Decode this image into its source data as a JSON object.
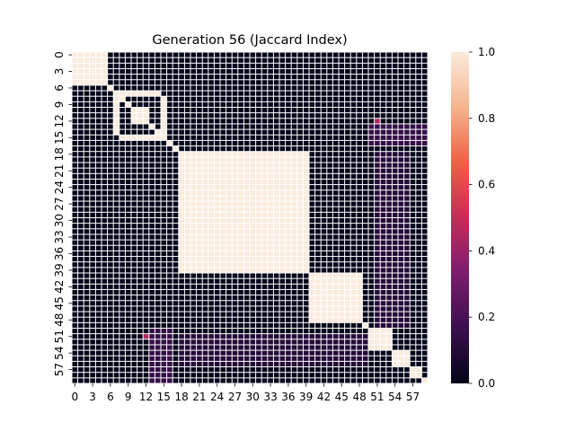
{
  "chart_data": {
    "type": "heatmap",
    "title": "Generation 56 (Jaccard Index)",
    "xlabel": "",
    "ylabel": "",
    "n": 60,
    "x_tick_labels": [
      "0",
      "3",
      "6",
      "9",
      "12",
      "15",
      "18",
      "21",
      "24",
      "27",
      "30",
      "33",
      "36",
      "39",
      "42",
      "45",
      "48",
      "51",
      "54",
      "57"
    ],
    "y_tick_labels": [
      "0",
      "3",
      "6",
      "9",
      "12",
      "15",
      "18",
      "21",
      "24",
      "27",
      "30",
      "33",
      "36",
      "39",
      "42",
      "45",
      "48",
      "51",
      "54",
      "57"
    ],
    "colorbar": {
      "range": [
        0.0,
        1.0
      ],
      "tick_labels": [
        "0.0",
        "0.2",
        "0.4",
        "0.6",
        "0.8",
        "1.0"
      ]
    },
    "colormap_stops": [
      "#03051a",
      "#3b0f4d",
      "#7c1d6f",
      "#c82a58",
      "#f06043",
      "#f6b48f",
      "#faebdd"
    ],
    "blocks": [
      {
        "rows": [
          0,
          5
        ],
        "cols": [
          0,
          5
        ],
        "value": 1.0
      },
      {
        "rows": [
          10,
          12
        ],
        "cols": [
          10,
          12
        ],
        "value": 1.0
      },
      {
        "rows": [
          18,
          39
        ],
        "cols": [
          18,
          39
        ],
        "value": 1.0
      },
      {
        "rows": [
          40,
          48
        ],
        "cols": [
          40,
          48
        ],
        "value": 1.0
      },
      {
        "rows": [
          50,
          53
        ],
        "cols": [
          50,
          53
        ],
        "value": 1.0
      },
      {
        "rows": [
          54,
          56
        ],
        "cols": [
          54,
          56
        ],
        "value": 1.0
      },
      {
        "rows": [
          57,
          58
        ],
        "cols": [
          57,
          58
        ],
        "value": 1.0
      },
      {
        "rows": [
          7,
          7
        ],
        "cols": [
          8,
          14
        ],
        "value": 1.0
      },
      {
        "rows": [
          8,
          14
        ],
        "cols": [
          7,
          7
        ],
        "value": 1.0
      },
      {
        "rows": [
          15,
          15
        ],
        "cols": [
          8,
          14
        ],
        "value": 1.0
      },
      {
        "rows": [
          8,
          14
        ],
        "cols": [
          15,
          15
        ],
        "value": 1.0
      }
    ],
    "diagonal_value": 1.0,
    "background_value": 0.0,
    "faint_regions": [
      {
        "rows": [
          13,
          16
        ],
        "cols": [
          50,
          59
        ],
        "value": 0.15
      },
      {
        "rows": [
          50,
          59
        ],
        "cols": [
          13,
          16
        ],
        "value": 0.15
      },
      {
        "rows": [
          18,
          49
        ],
        "cols": [
          51,
          56
        ],
        "value": 0.1
      },
      {
        "rows": [
          51,
          56
        ],
        "cols": [
          18,
          49
        ],
        "value": 0.1
      },
      {
        "rows": [
          12,
          12
        ],
        "cols": [
          51,
          51
        ],
        "value": 0.45
      },
      {
        "rows": [
          51,
          51
        ],
        "cols": [
          12,
          12
        ],
        "value": 0.45
      }
    ]
  }
}
